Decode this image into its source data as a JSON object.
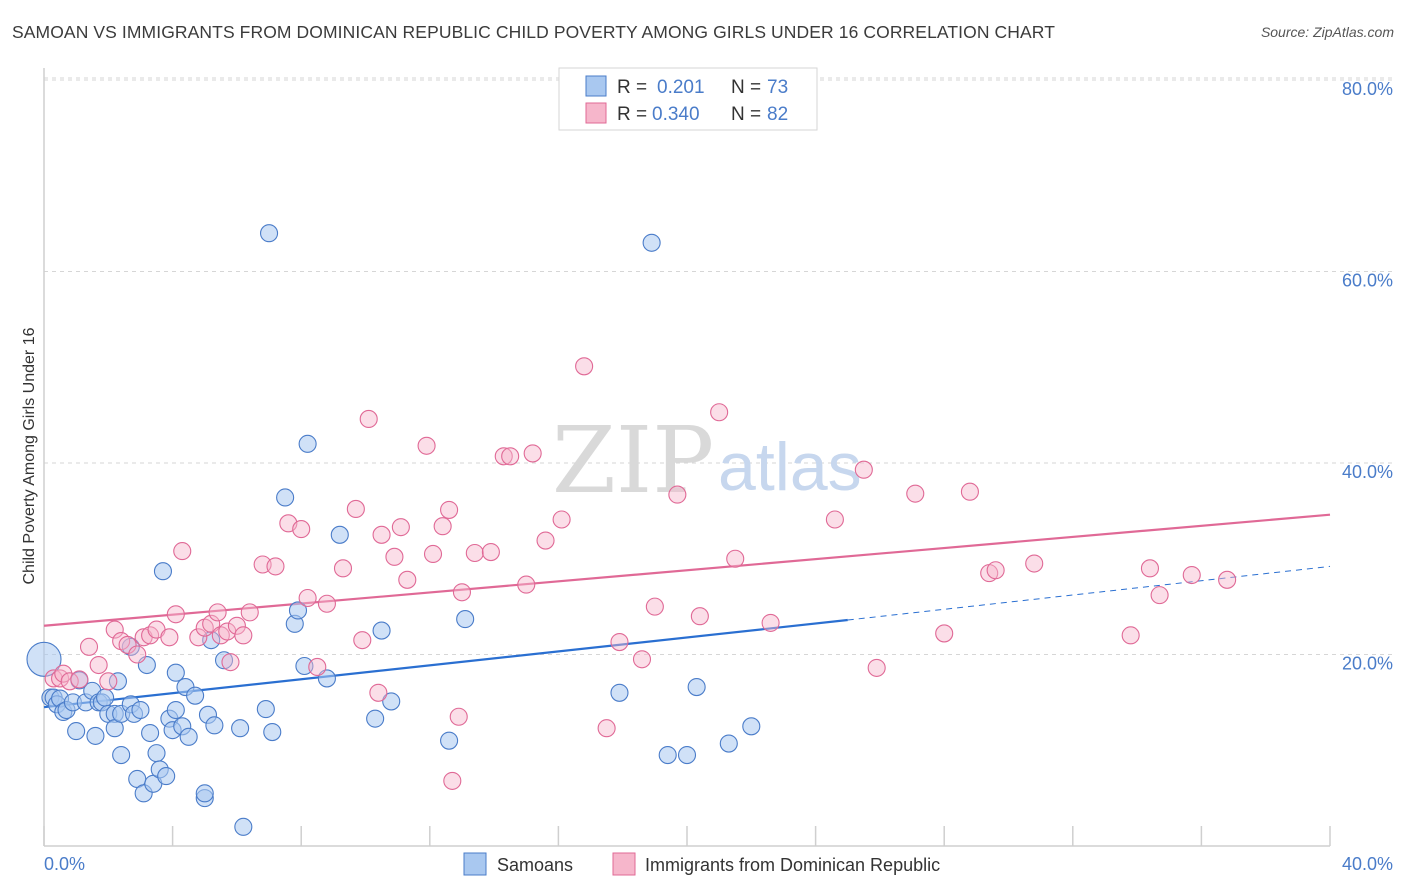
{
  "title": "SAMOAN VS IMMIGRANTS FROM DOMINICAN REPUBLIC CHILD POVERTY AMONG GIRLS UNDER 16 CORRELATION CHART",
  "source": "Source: ZipAtlas.com",
  "watermark": {
    "part1": "ZIP",
    "part2": "atlas"
  },
  "legend_top": [
    {
      "r_label": "R =",
      "r_value": "0.201",
      "n_label": "N =",
      "n_value": "73"
    },
    {
      "r_label": "R =",
      "r_value": "0.340",
      "n_label": "N =",
      "n_value": "82"
    }
  ],
  "colors": {
    "blue": "#4a7cc9",
    "blue_fill": "#a9c8f0",
    "pink": "#e06996",
    "pink_fill": "#f6b6cb",
    "grid": "#d6d6d6"
  },
  "chart_data": {
    "type": "scatter",
    "title": "SAMOAN VS IMMIGRANTS FROM DOMINICAN REPUBLIC CHILD POVERTY AMONG GIRLS UNDER 16 CORRELATION CHART",
    "xlabel": "",
    "ylabel": "Child Poverty Among Girls Under 16",
    "xlim": [
      0,
      40
    ],
    "ylim": [
      0,
      80
    ],
    "x_tick_labels": [
      "0.0%",
      "40.0%"
    ],
    "y_ticks": [
      20,
      40,
      60,
      80
    ],
    "y_tick_labels": [
      "20.0%",
      "40.0%",
      "60.0%",
      "80.0%"
    ],
    "grid": true,
    "legend_placement": "top-center",
    "series": [
      {
        "name": "Samoans",
        "color": "#4a7cc9",
        "r": 0.201,
        "n": 73,
        "trend": {
          "x0": 0,
          "y0": 14.5,
          "x1": 25,
          "y1": 23.6,
          "dashed_to_x": 40,
          "dashed_to_y": 29.2
        },
        "points": [
          [
            0.0,
            19.5
          ],
          [
            0.2,
            15.5
          ],
          [
            0.3,
            15.5
          ],
          [
            0.4,
            14.8
          ],
          [
            0.5,
            15.4
          ],
          [
            0.6,
            14.0
          ],
          [
            0.7,
            14.2
          ],
          [
            0.9,
            15.0
          ],
          [
            1.0,
            12.0
          ],
          [
            1.1,
            17.3
          ],
          [
            1.3,
            15.0
          ],
          [
            1.5,
            16.2
          ],
          [
            1.6,
            11.5
          ],
          [
            1.7,
            15.0
          ],
          [
            1.8,
            15.0
          ],
          [
            1.9,
            15.5
          ],
          [
            2.0,
            13.8
          ],
          [
            2.2,
            13.8
          ],
          [
            2.2,
            12.3
          ],
          [
            2.3,
            17.2
          ],
          [
            2.4,
            13.8
          ],
          [
            2.4,
            9.5
          ],
          [
            2.7,
            14.8
          ],
          [
            2.7,
            20.8
          ],
          [
            2.8,
            13.8
          ],
          [
            2.9,
            7.0
          ],
          [
            3.0,
            14.2
          ],
          [
            3.1,
            5.5
          ],
          [
            3.2,
            18.9
          ],
          [
            3.3,
            11.8
          ],
          [
            3.4,
            6.5
          ],
          [
            3.5,
            9.7
          ],
          [
            3.6,
            8.0
          ],
          [
            3.7,
            28.7
          ],
          [
            3.8,
            7.3
          ],
          [
            3.9,
            13.3
          ],
          [
            4.0,
            12.1
          ],
          [
            4.1,
            14.2
          ],
          [
            4.1,
            18.1
          ],
          [
            4.3,
            12.5
          ],
          [
            4.4,
            16.6
          ],
          [
            4.5,
            11.4
          ],
          [
            4.7,
            15.7
          ],
          [
            5.0,
            5.0
          ],
          [
            5.0,
            5.5
          ],
          [
            5.1,
            13.7
          ],
          [
            5.2,
            21.5
          ],
          [
            5.3,
            12.6
          ],
          [
            5.6,
            19.4
          ],
          [
            6.1,
            12.3
          ],
          [
            6.2,
            2.0
          ],
          [
            6.9,
            14.3
          ],
          [
            7.0,
            64.0
          ],
          [
            7.1,
            11.9
          ],
          [
            7.5,
            36.4
          ],
          [
            7.8,
            23.2
          ],
          [
            7.9,
            24.6
          ],
          [
            8.1,
            18.8
          ],
          [
            8.2,
            42.0
          ],
          [
            8.8,
            17.5
          ],
          [
            9.2,
            32.5
          ],
          [
            10.3,
            13.3
          ],
          [
            10.5,
            22.5
          ],
          [
            10.8,
            15.1
          ],
          [
            12.6,
            11.0
          ],
          [
            13.1,
            23.7
          ],
          [
            17.9,
            16.0
          ],
          [
            18.9,
            63.0
          ],
          [
            19.4,
            9.5
          ],
          [
            20.0,
            9.5
          ],
          [
            20.3,
            16.6
          ],
          [
            21.3,
            10.7
          ],
          [
            22.0,
            12.5
          ]
        ]
      },
      {
        "name": "Immigrants from Dominican Republic",
        "color": "#e06996",
        "r": 0.34,
        "n": 82,
        "trend": {
          "x0": 0,
          "y0": 23.0,
          "x1": 40,
          "y1": 34.6
        },
        "points": [
          [
            0.3,
            17.5
          ],
          [
            0.5,
            17.5
          ],
          [
            0.6,
            18.0
          ],
          [
            0.8,
            17.2
          ],
          [
            1.1,
            17.4
          ],
          [
            1.4,
            20.8
          ],
          [
            1.7,
            18.9
          ],
          [
            2.0,
            17.2
          ],
          [
            2.2,
            22.6
          ],
          [
            2.4,
            21.4
          ],
          [
            2.6,
            21.0
          ],
          [
            2.9,
            20.0
          ],
          [
            3.1,
            21.8
          ],
          [
            3.3,
            22.0
          ],
          [
            3.5,
            22.6
          ],
          [
            3.9,
            21.8
          ],
          [
            4.1,
            24.2
          ],
          [
            4.3,
            30.8
          ],
          [
            4.8,
            21.8
          ],
          [
            5.0,
            22.8
          ],
          [
            5.2,
            23.2
          ],
          [
            5.4,
            24.4
          ],
          [
            5.5,
            22.0
          ],
          [
            5.7,
            22.4
          ],
          [
            5.8,
            19.2
          ],
          [
            6.0,
            23.0
          ],
          [
            6.2,
            22.0
          ],
          [
            6.4,
            24.4
          ],
          [
            6.8,
            29.4
          ],
          [
            7.2,
            29.2
          ],
          [
            7.6,
            33.7
          ],
          [
            8.0,
            33.1
          ],
          [
            8.2,
            25.9
          ],
          [
            8.5,
            18.7
          ],
          [
            8.8,
            25.3
          ],
          [
            9.3,
            29.0
          ],
          [
            9.7,
            35.2
          ],
          [
            9.9,
            21.5
          ],
          [
            10.1,
            44.6
          ],
          [
            10.4,
            16.0
          ],
          [
            10.5,
            32.5
          ],
          [
            10.9,
            30.2
          ],
          [
            11.1,
            33.3
          ],
          [
            11.3,
            27.8
          ],
          [
            11.9,
            41.8
          ],
          [
            12.1,
            30.5
          ],
          [
            12.4,
            33.4
          ],
          [
            12.6,
            35.1
          ],
          [
            12.7,
            6.8
          ],
          [
            12.9,
            13.5
          ],
          [
            13.0,
            26.5
          ],
          [
            13.4,
            30.6
          ],
          [
            13.9,
            30.7
          ],
          [
            14.3,
            40.7
          ],
          [
            14.5,
            40.7
          ],
          [
            15.0,
            27.3
          ],
          [
            15.2,
            41.0
          ],
          [
            15.6,
            31.9
          ],
          [
            16.1,
            34.1
          ],
          [
            16.8,
            50.1
          ],
          [
            17.5,
            12.3
          ],
          [
            17.9,
            21.3
          ],
          [
            18.6,
            19.5
          ],
          [
            19.0,
            25.0
          ],
          [
            19.7,
            36.7
          ],
          [
            20.4,
            24.0
          ],
          [
            21.0,
            45.3
          ],
          [
            21.5,
            30.0
          ],
          [
            22.6,
            23.3
          ],
          [
            24.6,
            34.1
          ],
          [
            25.5,
            39.3
          ],
          [
            25.9,
            18.6
          ],
          [
            27.1,
            36.8
          ],
          [
            28.0,
            22.2
          ],
          [
            28.8,
            37.0
          ],
          [
            29.4,
            28.5
          ],
          [
            29.6,
            28.8
          ],
          [
            30.8,
            29.5
          ],
          [
            33.8,
            22.0
          ],
          [
            34.4,
            29.0
          ],
          [
            34.7,
            26.2
          ],
          [
            35.7,
            28.3
          ],
          [
            36.8,
            27.8
          ]
        ]
      }
    ]
  },
  "bottom_legend": [
    "Samoans",
    "Immigrants from Dominican Republic"
  ]
}
